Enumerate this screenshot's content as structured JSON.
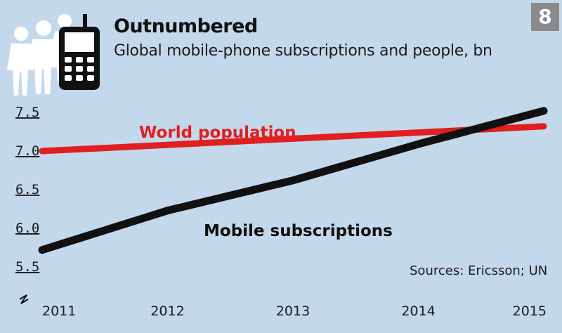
{
  "badge": "8",
  "title": "Outnumbered",
  "subtitle": "Global mobile-phone subscriptions and people, bn",
  "icons": [
    "people-icon",
    "mobile-phone-icon"
  ],
  "colors": {
    "background": "#c4d8ec",
    "population": "#e01f1f",
    "mobile": "#111111",
    "badge": "#8a8a8a"
  },
  "source": "Sources: Ericsson; UN",
  "chart_data": {
    "type": "line",
    "title": "Outnumbered",
    "subtitle": "Global mobile-phone subscriptions and people, bn",
    "x": [
      2011,
      2012,
      2013,
      2014,
      2015
    ],
    "x_tick_labels": [
      "2011",
      "2012",
      "2013",
      "2014",
      "2015"
    ],
    "y_tick_labels": [
      "5.5",
      "6.0",
      "6.5",
      "7.0",
      "7.5"
    ],
    "ylim": [
      5.5,
      7.5
    ],
    "y_axis_broken": true,
    "grid": false,
    "series": [
      {
        "name": "World population",
        "values": [
          7.0,
          7.08,
          7.16,
          7.24,
          7.32
        ]
      },
      {
        "name": "Mobile subscriptions",
        "values": [
          5.72,
          6.23,
          6.62,
          7.09,
          7.52
        ]
      }
    ],
    "source": "Sources: Ericsson; UN"
  }
}
